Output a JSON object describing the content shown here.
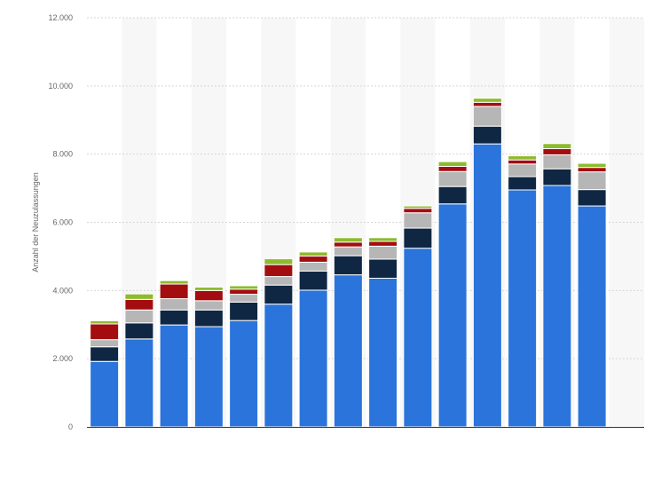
{
  "chart_data": {
    "type": "bar",
    "stacked": true,
    "categories": [
      "",
      "",
      "",
      "",
      "",
      "",
      "",
      "",
      "",
      "",
      "",
      "",
      "",
      "",
      "",
      ""
    ],
    "series": [
      {
        "values": [
          1920,
          2580,
          2990,
          2940,
          3120,
          3600,
          4010,
          4460,
          4360,
          5240,
          6540,
          8300,
          6950,
          7080,
          6480,
          0
        ],
        "color": "#2a74db"
      },
      {
        "values": [
          430,
          470,
          440,
          490,
          540,
          560,
          560,
          560,
          560,
          590,
          510,
          520,
          390,
          490,
          480,
          0
        ],
        "color": "#0f2743"
      },
      {
        "values": [
          210,
          380,
          330,
          270,
          230,
          250,
          260,
          260,
          380,
          450,
          440,
          580,
          370,
          410,
          520,
          0
        ],
        "color": "#b6b6b6"
      },
      {
        "values": [
          460,
          310,
          430,
          300,
          150,
          350,
          180,
          140,
          140,
          130,
          150,
          120,
          120,
          180,
          130,
          0
        ],
        "color": "#a30d10"
      },
      {
        "values": [
          90,
          160,
          100,
          100,
          100,
          170,
          120,
          130,
          110,
          70,
          140,
          120,
          120,
          150,
          120,
          0
        ],
        "color": "#8dbb2d"
      }
    ],
    "ylabel": "Anzahl der Neuzulassungen",
    "ylim": [
      0,
      12000
    ],
    "yticks": [
      0,
      2000,
      4000,
      6000,
      8000,
      10000,
      12000
    ],
    "ytick_labels": [
      "0",
      "2.000",
      "4.000",
      "6.000",
      "8.000",
      "10.000",
      "12.000"
    ],
    "grid": true,
    "legend": "none"
  }
}
